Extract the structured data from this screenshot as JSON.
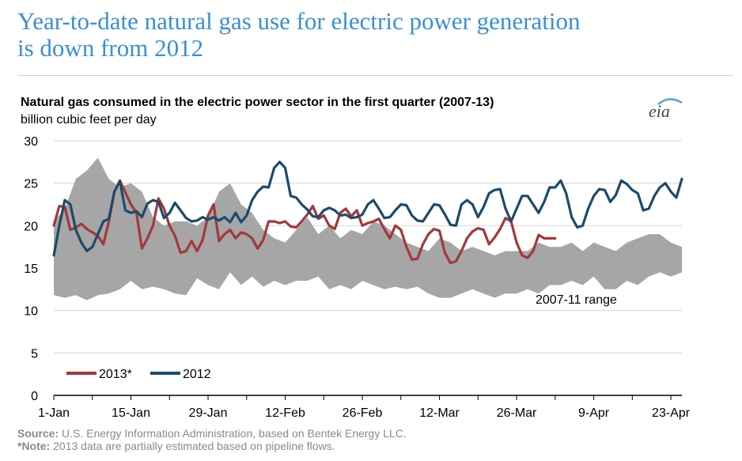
{
  "slide": {
    "title_line1": "Year-to-date natural gas use for electric power generation",
    "title_line2": "is down from 2012"
  },
  "chart_data": {
    "type": "line",
    "title": "Natural gas consumed in the electric power sector in the first quarter (2007-13)",
    "subtitle": "billion cubic feet per day",
    "logo": "eia",
    "xlabel": "",
    "ylabel": "billion cubic feet per day",
    "ylim": [
      0,
      30
    ],
    "yticks": [
      0,
      5,
      10,
      15,
      20,
      25,
      30
    ],
    "xlim": [
      0,
      114
    ],
    "xticks": [
      {
        "day": 0,
        "label": "1-Jan"
      },
      {
        "day": 14,
        "label": "15-Jan"
      },
      {
        "day": 28,
        "label": "29-Jan"
      },
      {
        "day": 42,
        "label": "12-Feb"
      },
      {
        "day": 56,
        "label": "26-Feb"
      },
      {
        "day": 70,
        "label": "12-Mar"
      },
      {
        "day": 84,
        "label": "26-Mar"
      },
      {
        "day": 98,
        "label": "9-Apr"
      },
      {
        "day": 112,
        "label": "23-Apr"
      }
    ],
    "grid": true,
    "legend_position": "bottom-left",
    "range_band": {
      "name": "2007-11 range",
      "color": "#a6a6a6",
      "x": [
        0,
        2,
        4,
        6,
        8,
        10,
        12,
        14,
        16,
        18,
        20,
        22,
        24,
        26,
        28,
        30,
        32,
        34,
        36,
        38,
        40,
        42,
        44,
        46,
        48,
        50,
        52,
        54,
        56,
        58,
        60,
        62,
        64,
        66,
        68,
        70,
        72,
        74,
        76,
        78,
        80,
        82,
        84,
        86,
        88,
        90,
        92,
        94,
        96,
        98,
        100,
        102,
        104,
        106,
        108,
        110,
        112,
        114
      ],
      "low": [
        11.8,
        11.5,
        11.8,
        11.2,
        11.8,
        12.0,
        12.5,
        13.5,
        12.5,
        12.8,
        12.5,
        12.0,
        11.8,
        13.8,
        13.0,
        12.5,
        14.5,
        13.0,
        14.0,
        12.8,
        13.5,
        13.0,
        13.5,
        13.5,
        14.0,
        12.5,
        13.0,
        12.5,
        13.5,
        13.0,
        12.5,
        12.8,
        12.5,
        12.8,
        12.0,
        11.5,
        11.5,
        12.0,
        12.5,
        12.0,
        11.5,
        12.0,
        12.0,
        12.5,
        12.0,
        13.0,
        13.0,
        13.5,
        13.0,
        14.0,
        12.5,
        12.5,
        13.5,
        13.0,
        14.0,
        14.5,
        14.0,
        14.5
      ],
      "high": [
        20.5,
        22.0,
        25.5,
        26.5,
        28.0,
        25.5,
        24.5,
        25.0,
        24.0,
        21.0,
        20.0,
        20.5,
        20.5,
        20.0,
        21.0,
        24.0,
        25.0,
        22.5,
        21.5,
        19.5,
        18.5,
        18.0,
        19.5,
        21.0,
        19.0,
        20.0,
        18.5,
        19.5,
        19.0,
        20.5,
        20.0,
        19.0,
        18.0,
        17.5,
        17.0,
        18.5,
        18.0,
        17.0,
        17.5,
        17.0,
        16.5,
        17.0,
        17.0,
        17.0,
        18.0,
        17.5,
        17.5,
        18.0,
        17.0,
        18.0,
        17.5,
        17.0,
        18.0,
        18.5,
        19.0,
        19.0,
        18.0,
        17.5
      ]
    },
    "range_label": "2007-11 range",
    "series": [
      {
        "name": "2013*",
        "color": "#a3383b",
        "x": [
          0,
          1,
          2,
          3,
          4,
          5,
          6,
          7,
          8,
          9,
          10,
          11,
          12,
          13,
          14,
          15,
          16,
          17,
          18,
          19,
          20,
          21,
          22,
          23,
          24,
          25,
          26,
          27,
          28,
          29,
          30,
          31,
          32,
          33,
          34,
          35,
          36,
          37,
          38,
          39,
          40,
          41,
          42,
          43,
          44,
          45,
          46,
          47,
          48,
          49,
          50,
          51,
          52,
          53,
          54,
          55,
          56,
          57,
          58,
          59,
          60,
          61,
          62,
          63,
          64,
          65,
          66,
          67,
          68,
          69,
          70,
          71,
          72,
          73,
          74,
          75,
          76,
          77,
          78,
          79,
          80,
          81,
          82,
          83,
          84,
          85,
          86,
          87,
          88,
          89,
          90,
          91
        ],
        "values": [
          20.0,
          22.3,
          22.2,
          19.5,
          19.8,
          20.2,
          19.6,
          19.2,
          18.8,
          17.8,
          20.5,
          24.0,
          25.3,
          23.9,
          22.5,
          21.5,
          17.3,
          18.5,
          20.0,
          23.2,
          22.0,
          20.0,
          18.8,
          16.8,
          17.0,
          18.2,
          17.0,
          18.3,
          21.2,
          22.5,
          18.2,
          19.0,
          19.5,
          18.5,
          19.2,
          19.0,
          18.5,
          17.3,
          18.3,
          20.5,
          20.5,
          20.3,
          20.5,
          19.9,
          19.8,
          20.5,
          21.3,
          22.3,
          20.8,
          21.2,
          20.0,
          19.6,
          21.5,
          22.0,
          21.1,
          21.8,
          20.0,
          20.3,
          20.5,
          20.8,
          19.6,
          18.5,
          20.0,
          19.5,
          17.5,
          16.0,
          16.1,
          17.8,
          19.0,
          19.6,
          19.4,
          16.8,
          15.6,
          15.8,
          17.0,
          18.5,
          19.3,
          19.7,
          19.5,
          17.8,
          18.6,
          19.6,
          20.9,
          20.5,
          18.0,
          16.5,
          16.2,
          17.0,
          18.9,
          18.5,
          18.5,
          18.5
        ]
      },
      {
        "name": "2012",
        "color": "#1b4b6b",
        "x": [
          0,
          1,
          2,
          3,
          4,
          5,
          6,
          7,
          8,
          9,
          10,
          11,
          12,
          13,
          14,
          15,
          16,
          17,
          18,
          19,
          20,
          21,
          22,
          23,
          24,
          25,
          26,
          27,
          28,
          29,
          30,
          31,
          32,
          33,
          34,
          35,
          36,
          37,
          38,
          39,
          40,
          41,
          42,
          43,
          44,
          45,
          46,
          47,
          48,
          49,
          50,
          51,
          52,
          53,
          54,
          55,
          56,
          57,
          58,
          59,
          60,
          61,
          62,
          63,
          64,
          65,
          66,
          67,
          68,
          69,
          70,
          71,
          72,
          73,
          74,
          75,
          76,
          77,
          78,
          79,
          80,
          81,
          82,
          83,
          84,
          85,
          86,
          87,
          88,
          89,
          90,
          91,
          92,
          93,
          94,
          95,
          96,
          97,
          98,
          99,
          100,
          101,
          102,
          103,
          104,
          105,
          106,
          107,
          108,
          109,
          110,
          111,
          112,
          113,
          114
        ],
        "values": [
          16.5,
          20.0,
          23.0,
          22.5,
          19.5,
          18.0,
          17.0,
          17.5,
          19.0,
          20.5,
          20.8,
          24.0,
          25.2,
          21.8,
          21.5,
          21.7,
          21.0,
          22.6,
          23.0,
          22.8,
          20.9,
          21.5,
          22.7,
          21.8,
          20.9,
          20.5,
          20.6,
          21.0,
          20.7,
          21.0,
          20.6,
          21.0,
          20.4,
          21.5,
          20.4,
          21.2,
          23.0,
          24.0,
          24.6,
          24.5,
          26.8,
          27.5,
          26.8,
          23.5,
          23.3,
          22.5,
          21.9,
          21.1,
          21.0,
          21.8,
          22.1,
          21.8,
          21.2,
          21.3,
          20.9,
          21.0,
          21.3,
          22.5,
          23.0,
          22.0,
          20.9,
          21.0,
          21.8,
          22.5,
          22.4,
          21.2,
          20.6,
          20.5,
          21.5,
          22.5,
          22.4,
          21.3,
          20.1,
          20.0,
          22.5,
          23.0,
          22.5,
          21.0,
          22.2,
          23.8,
          24.2,
          24.3,
          22.0,
          20.5,
          22.0,
          23.5,
          23.5,
          22.5,
          21.5,
          22.8,
          24.5,
          24.5,
          25.3,
          23.8,
          21.0,
          19.8,
          20.0,
          22.0,
          23.5,
          24.3,
          24.2,
          22.8,
          23.6,
          25.3,
          24.9,
          24.2,
          23.8,
          21.8,
          22.0,
          23.5,
          24.5,
          25.0,
          24.0,
          23.3,
          25.5
        ]
      }
    ],
    "source_label": "Source:",
    "source_text": " U.S. Energy Information Administration, based on Bentek Energy LLC.",
    "note_label": "*Note:",
    "note_text": " 2013 data are partially estimated based on pipeline flows."
  }
}
